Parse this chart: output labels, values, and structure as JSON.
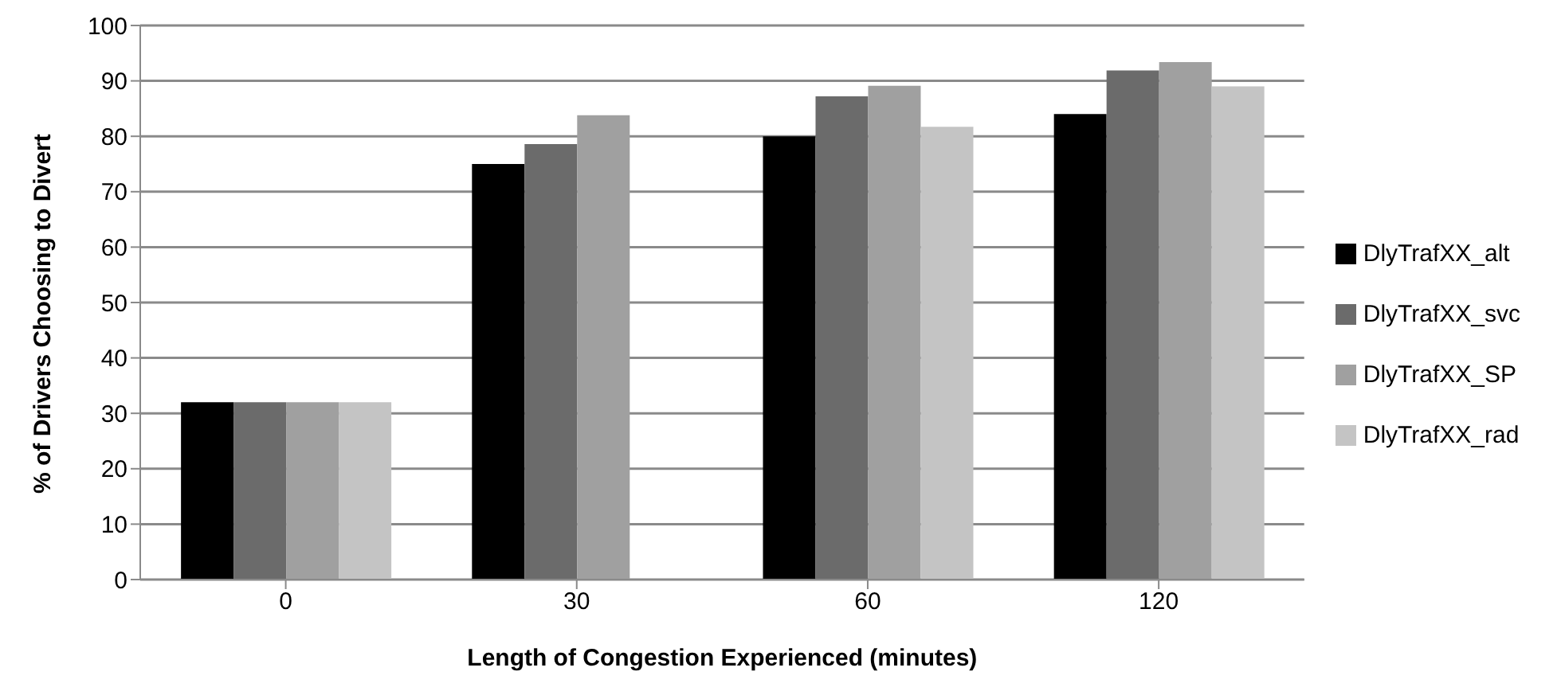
{
  "chart_data": {
    "type": "bar",
    "xlabel": "Length of Congestion Experienced (minutes)",
    "ylabel": "% of Drivers Choosing to Divert",
    "categories": [
      "0",
      "30",
      "60",
      "120"
    ],
    "series": [
      {
        "name": "DlyTrafXX_alt",
        "color": "#000000",
        "values": [
          32,
          75,
          80,
          84
        ]
      },
      {
        "name": "DlyTrafXX_svc",
        "color": "#6b6b6b",
        "values": [
          32,
          78.6,
          87.2,
          91.9
        ]
      },
      {
        "name": "DlyTrafXX_SP",
        "color": "#a0a0a0",
        "values": [
          32,
          83.8,
          89.1,
          93.4
        ]
      },
      {
        "name": "DlyTrafXX_rad",
        "color": "#c4c4c4",
        "values": [
          32,
          null,
          81.7,
          89
        ]
      }
    ],
    "ylim": [
      0,
      100
    ],
    "yticks": [
      0,
      10,
      20,
      30,
      40,
      50,
      60,
      70,
      80,
      90,
      100
    ],
    "grid": "y",
    "legend": "right"
  }
}
